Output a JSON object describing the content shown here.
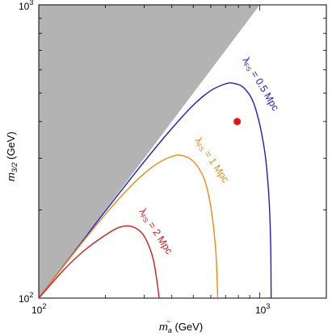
{
  "chart_data": {
    "type": "line",
    "title": "",
    "xscale": "log",
    "yscale": "log",
    "xlim": [
      100,
      2000
    ],
    "ylim": [
      100,
      1000
    ],
    "xlabel": {
      "main": "m",
      "sub": "a",
      "accent": "~",
      "unit": "(GeV)"
    },
    "ylabel": {
      "main": "m",
      "sub": "3/2",
      "unit": "(GeV)"
    },
    "xtick_labels": [
      {
        "value": 100,
        "base": "10",
        "exp": "2"
      },
      {
        "value": 1000,
        "base": "10",
        "exp": "3"
      }
    ],
    "ytick_labels": [
      {
        "value": 100,
        "base": "10",
        "exp": "2"
      },
      {
        "value": 1000,
        "base": "10",
        "exp": "3"
      }
    ],
    "excluded_region": {
      "color": "#b3b3b3",
      "boundary": [
        [
          100,
          100
        ],
        [
          1000,
          1000
        ]
      ],
      "description_side": "above diagonal"
    },
    "series": [
      {
        "name": "λFS = 0.5 Mpc",
        "label": {
          "lambda": "λ",
          "sub": "FS",
          "text": " = 0.5 Mpc"
        },
        "color": "#1a1adb",
        "x": [
          100,
          150,
          200,
          300,
          400,
          500,
          600,
          700,
          760,
          850,
          950,
          1050,
          1100,
          1120,
          1125
        ],
        "y": [
          100,
          149,
          198,
          292,
          379,
          455,
          510,
          538,
          540,
          520,
          450,
          320,
          220,
          150,
          100
        ]
      },
      {
        "name": "λFS = 1 Mpc",
        "label": {
          "lambda": "λ",
          "sub": "FS",
          "text": " = 1 Mpc"
        },
        "color": "#f08a0c",
        "x": [
          100,
          150,
          200,
          250,
          300,
          350,
          400,
          440,
          500,
          560,
          600,
          630,
          640,
          645
        ],
        "y": [
          100,
          148,
          193,
          233,
          266,
          290,
          304,
          307,
          293,
          255,
          205,
          150,
          120,
          100
        ]
      },
      {
        "name": "λFS = 2 Mpc",
        "label": {
          "lambda": "λ",
          "sub": "FS",
          "text": " = 2 Mpc"
        },
        "color": "#d91a1a",
        "x": [
          100,
          130,
          160,
          200,
          230,
          260,
          290,
          310,
          330,
          345,
          350
        ],
        "y": [
          100,
          125,
          145,
          164,
          174,
          176,
          168,
          155,
          135,
          110,
          100
        ]
      }
    ],
    "points": [
      {
        "x": 790,
        "y": 400,
        "color": "#ee1111"
      }
    ]
  }
}
